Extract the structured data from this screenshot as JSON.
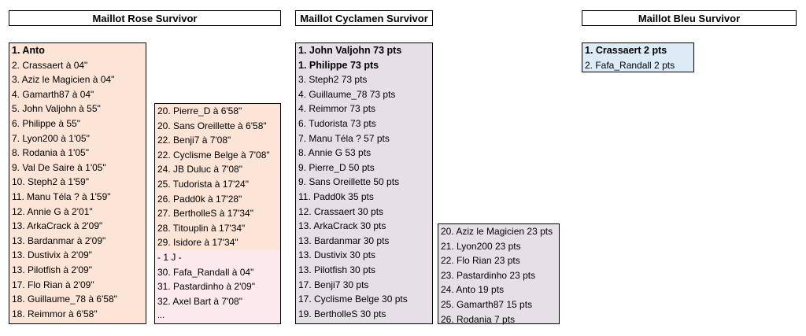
{
  "headers": {
    "rose": "Maillot Rose Survivor",
    "cyclamen": "Maillot Cyclamen Survivor",
    "bleu": "Maillot Bleu Survivor"
  },
  "rose_col1": [
    "1. Anto",
    "2. Crassaert à 04\"",
    "3. Aziz le Magicien à 04\"",
    "4. Gamarth87 à 04\"",
    "5. John Valjohn à 55\"",
    "6. Philippe à 55\"",
    "7. Lyon200 à 1'05\"",
    "8. Rodania à 1'05\"",
    "9. Val De Saire à 1'05\"",
    "10. Steph2 à 1'59\"",
    "11. Manu Téla ? à 1'59\"",
    "12. Annie G à 2'01\"",
    "13. ArkaCrack à 2'09\"",
    "13. Bardanmar à 2'09\"",
    "13. Dustivix à 2'09\"",
    "13. Pilotfish à 2'09\"",
    "17. Flo Rian à 2'09\"",
    "18. Guillaume_78 à 6'58\"",
    "18. Reimmor à 6'58\""
  ],
  "rose_col2": [
    "20. Pierre_D à 6'58\"",
    "20. Sans Oreillette à 6'58\"",
    "22. Benji7 à 7'08\"",
    "22. Cyclisme Belge à 7'08\"",
    "24. JB Duluc à 7'08\"",
    "25. Tudorista à 17'24\"",
    "26. Padd0k à 17'28\"",
    "27. BertholleS à 17'34\"",
    "28. Titouplin à 17'34\"",
    "29. Isidore à 17'34\""
  ],
  "rose_col2_lap": [
    " - 1 J -",
    "30. Fafa_Randall à 04\"",
    "31. Pastardinho à 2'09\"",
    "32. Axel Bart à 7'08\"",
    "..."
  ],
  "cyc_col1": [
    "1. John Valjohn 73 pts",
    "1. Philippe 73 pts",
    "3. Steph2 73 pts",
    "4. Guillaume_78 73 pts",
    "4. Reimmor 73 pts",
    "6. Tudorista 73 pts",
    "7. Manu Téla ? 57 pts",
    "8. Annie G 53 pts",
    "9. Pierre_D 50 pts",
    "9. Sans Oreillette 50 pts",
    "11. Padd0k 35 pts",
    "12. Crassaert 30 pts",
    "13. ArkaCrack 30 pts",
    "13. Bardanmar 30 pts",
    "13. Dustivix 30 pts",
    "13. Pilotfish 30 pts",
    "17. Benji7 30 pts",
    "17. Cyclisme Belge 30 pts",
    "19. BertholleS 30 pts"
  ],
  "cyc_col2": [
    "20. Aziz le Magicien 23 pts",
    "21. Lyon200 23 pts",
    "22. Flo Rian 23 pts",
    "23. Pastardinho 23 pts",
    "24. Anto 19 pts",
    "25. Gamarth87 15 pts",
    "26. Rodania 7 pts"
  ],
  "bleu_col1": [
    "1. Crassaert 2 pts",
    "2. Fafa_Randall 2 pts"
  ]
}
